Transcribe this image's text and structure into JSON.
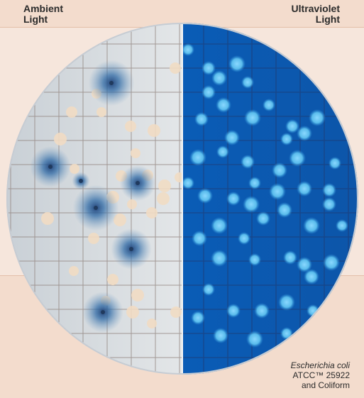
{
  "labels": {
    "left_line1": "Ambient",
    "left_line2": "Light",
    "right_line1": "Ultraviolet",
    "right_line2": "Light"
  },
  "caption": {
    "organism": "Escherichia coli",
    "strain": "ATCC™ 25922",
    "medium": "and Coliform"
  },
  "colors": {
    "ambient_background": "#d6dbe0",
    "uv_background": "#0b5fb8",
    "grid_line": "#8e7f7a",
    "colony_beige": "#f1dcc3",
    "colony_blue": "#2e6aa8",
    "uv_colony": "#6cc8f2"
  }
}
